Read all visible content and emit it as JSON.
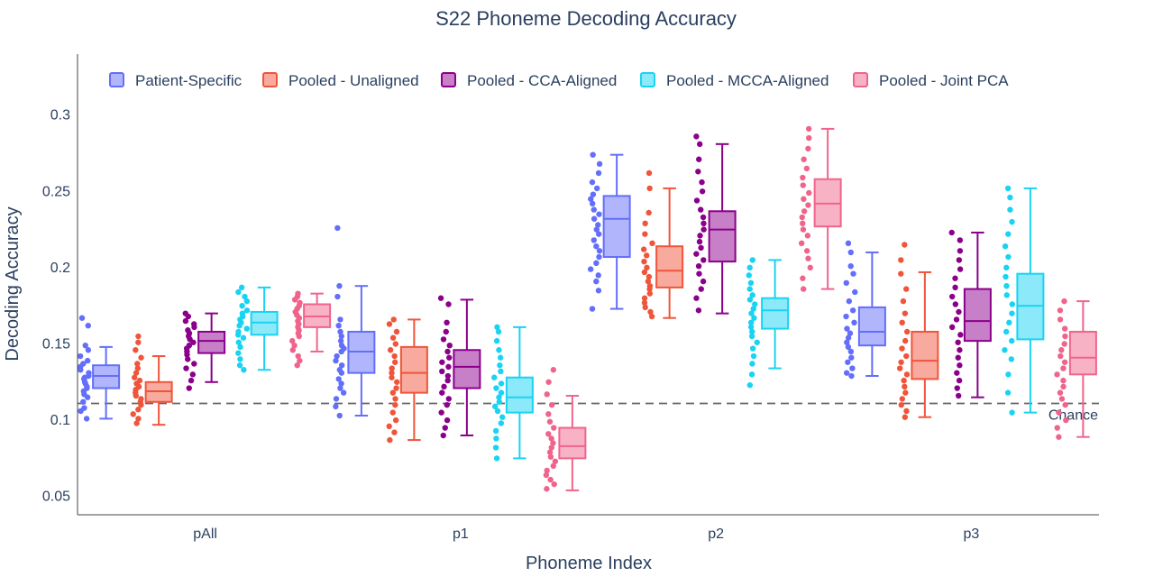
{
  "chart_data": {
    "type": "box",
    "title": "S22 Phoneme Decoding Accuracy",
    "xlabel": "Phoneme Index",
    "ylabel": "Decoding Accuracy",
    "ylim": [
      0.038,
      0.34
    ],
    "yticks": [
      0.05,
      0.1,
      0.15,
      0.2,
      0.25,
      0.3
    ],
    "ytick_labels": [
      "0.05",
      "0.1",
      "0.15",
      "0.2",
      "0.25",
      "0.3"
    ],
    "categories": [
      "pAll",
      "p1",
      "p2",
      "p3"
    ],
    "chance": {
      "value": 0.111,
      "label": "Chance"
    },
    "legend_position": "top-left",
    "grid": false,
    "series": [
      {
        "name": "Patient-Specific",
        "color": "#636efa",
        "fill": "#b1b6fc",
        "boxes": [
          {
            "min": 0.101,
            "q1": 0.121,
            "median": 0.129,
            "q3": 0.136,
            "max": 0.148
          },
          {
            "min": 0.103,
            "q1": 0.131,
            "median": 0.145,
            "q3": 0.158,
            "max": 0.188
          },
          {
            "min": 0.173,
            "q1": 0.207,
            "median": 0.232,
            "q3": 0.247,
            "max": 0.274
          },
          {
            "min": 0.129,
            "q1": 0.149,
            "median": 0.158,
            "q3": 0.174,
            "max": 0.21
          }
        ],
        "points": [
          [
            0.167,
            0.162,
            0.149,
            0.146,
            0.142,
            0.139,
            0.137,
            0.135,
            0.133,
            0.131,
            0.129,
            0.128,
            0.127,
            0.125,
            0.124,
            0.122,
            0.121,
            0.119,
            0.117,
            0.115,
            0.112,
            0.108,
            0.106,
            0.101
          ],
          [
            0.226,
            0.188,
            0.181,
            0.166,
            0.162,
            0.158,
            0.155,
            0.152,
            0.149,
            0.147,
            0.145,
            0.142,
            0.139,
            0.136,
            0.133,
            0.131,
            0.127,
            0.124,
            0.121,
            0.118,
            0.114,
            0.109,
            0.103
          ],
          [
            0.274,
            0.268,
            0.262,
            0.256,
            0.252,
            0.248,
            0.245,
            0.242,
            0.238,
            0.235,
            0.232,
            0.228,
            0.225,
            0.222,
            0.218,
            0.214,
            0.211,
            0.207,
            0.203,
            0.199,
            0.195,
            0.191,
            0.185,
            0.173
          ],
          [
            0.216,
            0.21,
            0.201,
            0.196,
            0.19,
            0.184,
            0.178,
            0.172,
            0.168,
            0.164,
            0.16,
            0.157,
            0.154,
            0.151,
            0.148,
            0.145,
            0.141,
            0.138,
            0.134,
            0.131,
            0.129
          ]
        ]
      },
      {
        "name": "Pooled - Unaligned",
        "color": "#ef553b",
        "fill": "#f7aa9d",
        "boxes": [
          {
            "min": 0.097,
            "q1": 0.112,
            "median": 0.119,
            "q3": 0.125,
            "max": 0.142
          },
          {
            "min": 0.087,
            "q1": 0.118,
            "median": 0.131,
            "q3": 0.148,
            "max": 0.166
          },
          {
            "min": 0.167,
            "q1": 0.187,
            "median": 0.198,
            "q3": 0.214,
            "max": 0.252
          },
          {
            "min": 0.102,
            "q1": 0.127,
            "median": 0.139,
            "q3": 0.158,
            "max": 0.197
          }
        ],
        "points": [
          [
            0.155,
            0.151,
            0.146,
            0.141,
            0.137,
            0.134,
            0.131,
            0.128,
            0.126,
            0.124,
            0.122,
            0.12,
            0.118,
            0.116,
            0.114,
            0.112,
            0.11,
            0.107,
            0.104,
            0.101,
            0.098
          ],
          [
            0.166,
            0.163,
            0.158,
            0.154,
            0.15,
            0.146,
            0.142,
            0.138,
            0.134,
            0.131,
            0.128,
            0.125,
            0.121,
            0.118,
            0.114,
            0.11,
            0.105,
            0.1,
            0.096,
            0.092,
            0.087
          ],
          [
            0.262,
            0.252,
            0.236,
            0.229,
            0.222,
            0.216,
            0.212,
            0.208,
            0.204,
            0.2,
            0.197,
            0.194,
            0.191,
            0.188,
            0.186,
            0.183,
            0.18,
            0.177,
            0.174,
            0.171,
            0.168
          ],
          [
            0.215,
            0.205,
            0.196,
            0.186,
            0.178,
            0.17,
            0.164,
            0.158,
            0.152,
            0.147,
            0.142,
            0.138,
            0.134,
            0.13,
            0.126,
            0.122,
            0.118,
            0.114,
            0.11,
            0.106,
            0.102
          ]
        ]
      },
      {
        "name": "Pooled - CCA-Aligned",
        "color": "#8b008b",
        "fill": "#c77fc7",
        "boxes": [
          {
            "min": 0.125,
            "q1": 0.144,
            "median": 0.152,
            "q3": 0.158,
            "max": 0.17
          },
          {
            "min": 0.09,
            "q1": 0.121,
            "median": 0.135,
            "q3": 0.146,
            "max": 0.179
          },
          {
            "min": 0.17,
            "q1": 0.204,
            "median": 0.225,
            "q3": 0.237,
            "max": 0.281
          },
          {
            "min": 0.115,
            "q1": 0.152,
            "median": 0.165,
            "q3": 0.186,
            "max": 0.223
          }
        ],
        "points": [
          [
            0.17,
            0.168,
            0.165,
            0.163,
            0.161,
            0.159,
            0.157,
            0.155,
            0.153,
            0.151,
            0.149,
            0.147,
            0.145,
            0.143,
            0.14,
            0.137,
            0.134,
            0.13,
            0.126,
            0.121
          ],
          [
            0.18,
            0.176,
            0.164,
            0.158,
            0.153,
            0.149,
            0.145,
            0.141,
            0.138,
            0.135,
            0.132,
            0.129,
            0.126,
            0.122,
            0.118,
            0.114,
            0.11,
            0.105,
            0.1,
            0.095,
            0.09
          ],
          [
            0.286,
            0.281,
            0.271,
            0.263,
            0.256,
            0.25,
            0.244,
            0.238,
            0.233,
            0.229,
            0.225,
            0.221,
            0.217,
            0.213,
            0.209,
            0.205,
            0.201,
            0.196,
            0.191,
            0.186,
            0.18,
            0.172
          ],
          [
            0.223,
            0.218,
            0.211,
            0.205,
            0.199,
            0.193,
            0.187,
            0.181,
            0.176,
            0.171,
            0.166,
            0.161,
            0.156,
            0.151,
            0.146,
            0.141,
            0.136,
            0.131,
            0.126,
            0.121,
            0.116
          ]
        ]
      },
      {
        "name": "Pooled - MCCA-Aligned",
        "color": "#19d3f3",
        "fill": "#8ce9f9",
        "boxes": [
          {
            "min": 0.133,
            "q1": 0.156,
            "median": 0.164,
            "q3": 0.171,
            "max": 0.187
          },
          {
            "min": 0.075,
            "q1": 0.105,
            "median": 0.115,
            "q3": 0.128,
            "max": 0.161
          },
          {
            "min": 0.134,
            "q1": 0.16,
            "median": 0.172,
            "q3": 0.18,
            "max": 0.205
          },
          {
            "min": 0.105,
            "q1": 0.153,
            "median": 0.175,
            "q3": 0.196,
            "max": 0.252
          }
        ],
        "points": [
          [
            0.187,
            0.184,
            0.181,
            0.178,
            0.175,
            0.172,
            0.17,
            0.168,
            0.166,
            0.164,
            0.162,
            0.16,
            0.158,
            0.156,
            0.154,
            0.151,
            0.148,
            0.144,
            0.14,
            0.136,
            0.133
          ],
          [
            0.161,
            0.158,
            0.152,
            0.146,
            0.141,
            0.136,
            0.132,
            0.128,
            0.124,
            0.121,
            0.118,
            0.115,
            0.112,
            0.109,
            0.106,
            0.102,
            0.098,
            0.093,
            0.088,
            0.082,
            0.075
          ],
          [
            0.205,
            0.2,
            0.195,
            0.19,
            0.186,
            0.182,
            0.179,
            0.176,
            0.173,
            0.17,
            0.167,
            0.164,
            0.161,
            0.158,
            0.155,
            0.151,
            0.147,
            0.142,
            0.137,
            0.13,
            0.123
          ],
          [
            0.252,
            0.246,
            0.238,
            0.23,
            0.222,
            0.214,
            0.207,
            0.2,
            0.194,
            0.188,
            0.182,
            0.176,
            0.17,
            0.164,
            0.158,
            0.152,
            0.146,
            0.14,
            0.13,
            0.118,
            0.105
          ]
        ]
      },
      {
        "name": "Pooled - Joint PCA",
        "color": "#f0648c",
        "fill": "#f8b2c6",
        "boxes": [
          {
            "min": 0.145,
            "q1": 0.161,
            "median": 0.168,
            "q3": 0.176,
            "max": 0.183
          },
          {
            "min": 0.054,
            "q1": 0.075,
            "median": 0.083,
            "q3": 0.095,
            "max": 0.116
          },
          {
            "min": 0.186,
            "q1": 0.227,
            "median": 0.242,
            "q3": 0.258,
            "max": 0.291
          },
          {
            "min": 0.089,
            "q1": 0.13,
            "median": 0.141,
            "q3": 0.158,
            "max": 0.178
          }
        ],
        "points": [
          [
            0.183,
            0.181,
            0.179,
            0.177,
            0.175,
            0.173,
            0.171,
            0.169,
            0.167,
            0.165,
            0.163,
            0.161,
            0.159,
            0.157,
            0.155,
            0.152,
            0.149,
            0.146,
            0.142,
            0.139,
            0.136
          ],
          [
            0.133,
            0.125,
            0.117,
            0.11,
            0.104,
            0.099,
            0.095,
            0.091,
            0.088,
            0.085,
            0.082,
            0.079,
            0.076,
            0.073,
            0.07,
            0.067,
            0.064,
            0.061,
            0.058,
            0.055
          ],
          [
            0.291,
            0.285,
            0.278,
            0.271,
            0.265,
            0.259,
            0.254,
            0.249,
            0.245,
            0.241,
            0.237,
            0.233,
            0.229,
            0.225,
            0.221,
            0.216,
            0.211,
            0.206,
            0.2,
            0.193,
            0.186
          ],
          [
            0.178,
            0.172,
            0.166,
            0.16,
            0.155,
            0.15,
            0.146,
            0.142,
            0.138,
            0.134,
            0.13,
            0.126,
            0.122,
            0.118,
            0.114,
            0.11,
            0.105,
            0.1,
            0.095,
            0.089
          ]
        ]
      }
    ]
  }
}
